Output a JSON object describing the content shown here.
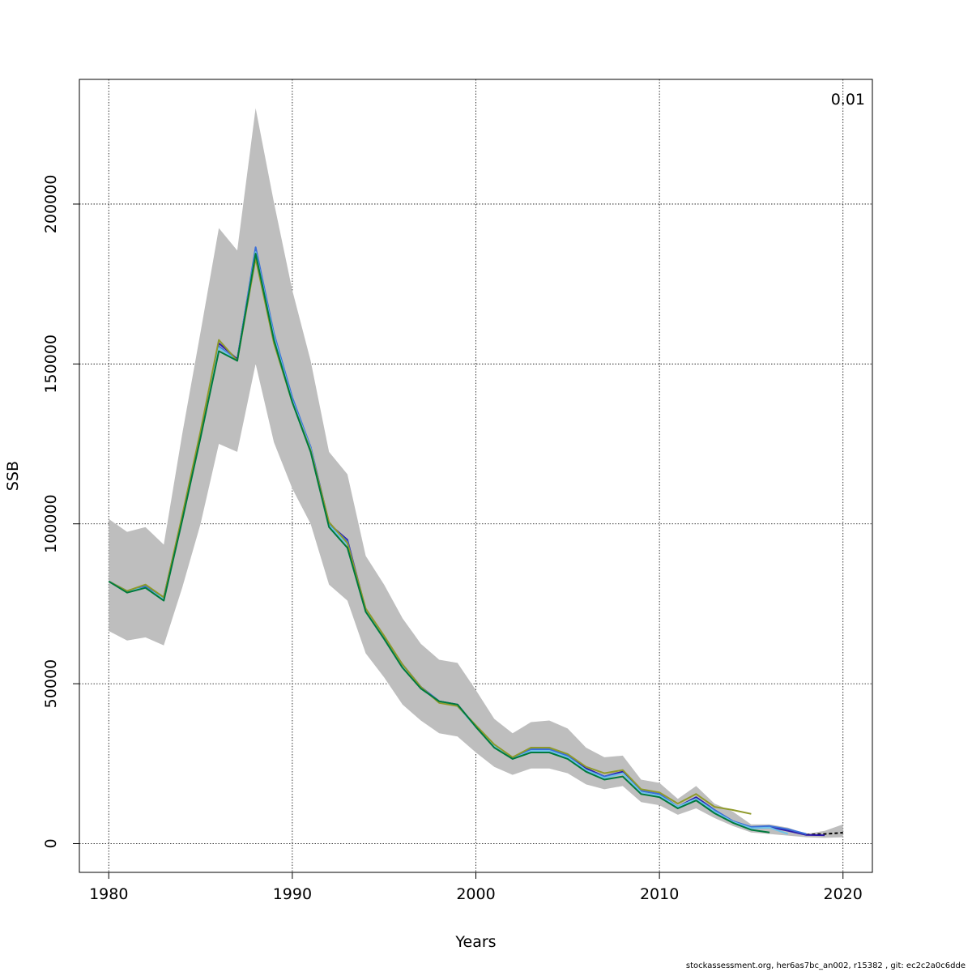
{
  "chart_data": {
    "type": "line",
    "xlabel": "Years",
    "ylabel": "SSB",
    "xlim": [
      1978.4,
      2021.6
    ],
    "ylim": [
      -9000,
      239000
    ],
    "x_ticks": [
      1980,
      1990,
      2000,
      2010,
      2020
    ],
    "y_ticks": [
      0,
      50000,
      100000,
      150000,
      200000
    ],
    "grid": true,
    "corner_label": "0.01",
    "footer": "stockassessment.org, her6as7bc_an002, r15382 , git: ec2c2a0c6dde",
    "confidence_band": {
      "color": "#bebebe",
      "x": [
        1980,
        1981,
        1982,
        1983,
        1984,
        1985,
        1986,
        1987,
        1988,
        1989,
        1990,
        1991,
        1992,
        1993,
        1994,
        1995,
        1996,
        1997,
        1998,
        1999,
        2000,
        2001,
        2002,
        2003,
        2004,
        2005,
        2006,
        2007,
        2008,
        2009,
        2010,
        2011,
        2012,
        2013,
        2014,
        2015,
        2016,
        2017,
        2018,
        2019,
        2020
      ],
      "lower": [
        66500,
        63500,
        64500,
        62000,
        80000,
        100000,
        125000,
        122500,
        150000,
        125500,
        111000,
        100000,
        81000,
        76000,
        59500,
        52000,
        43500,
        38500,
        34500,
        33500,
        28500,
        24000,
        21500,
        23500,
        23500,
        22000,
        18500,
        17000,
        18000,
        13000,
        12000,
        9000,
        11000,
        8000,
        5500,
        3500,
        3000,
        2500,
        2000,
        1800,
        2000
      ],
      "upper": [
        101500,
        97500,
        99000,
        93500,
        128000,
        160000,
        192500,
        185500,
        230000,
        200500,
        173000,
        151000,
        122500,
        115500,
        90000,
        81000,
        70500,
        62500,
        57500,
        56500,
        48000,
        39000,
        34500,
        38000,
        38500,
        36000,
        30000,
        27000,
        27500,
        20000,
        19000,
        14000,
        18000,
        12500,
        10000,
        6000,
        6000,
        5000,
        3000,
        4000,
        6000
      ]
    },
    "series": [
      {
        "color": "#000000",
        "dashed": true,
        "x": [
          2018,
          2019,
          2020
        ],
        "values": [
          2800,
          3000,
          3400
        ]
      },
      {
        "color": "#2c18a8",
        "x": [
          1980,
          1981,
          1982,
          1983,
          1984,
          1985,
          1986,
          1987,
          1988,
          1989,
          1990,
          1991,
          1992,
          1993,
          1994,
          1995,
          1996,
          1997,
          1998,
          1999,
          2000,
          2001,
          2002,
          2003,
          2004,
          2005,
          2006,
          2007,
          2008,
          2009,
          2010,
          2011,
          2012,
          2013,
          2014,
          2015,
          2016,
          2017,
          2018,
          2019
        ],
        "values": [
          82000,
          79000,
          80500,
          77000,
          102000,
          128000,
          156500,
          151500,
          185500,
          159000,
          139000,
          124000,
          100000,
          95000,
          73000,
          64500,
          56000,
          49000,
          44500,
          43500,
          36500,
          30500,
          26500,
          29500,
          29500,
          27500,
          23500,
          21000,
          22500,
          16500,
          15500,
          11500,
          14500,
          10500,
          7000,
          5000,
          5200,
          4000,
          2700,
          2600
        ]
      },
      {
        "color": "#3b6fd8",
        "x": [
          1980,
          1981,
          1982,
          1983,
          1984,
          1985,
          1986,
          1987,
          1988,
          1989,
          1990,
          1991,
          1992,
          1993,
          1994,
          1995,
          1996,
          1997,
          1998,
          1999,
          2000,
          2001,
          2002,
          2003,
          2004,
          2005,
          2006,
          2007,
          2008,
          2009,
          2010,
          2011,
          2012,
          2013,
          2014,
          2015,
          2016,
          2017,
          2018
        ],
        "values": [
          82000,
          79000,
          80500,
          77000,
          102000,
          128000,
          155500,
          151000,
          186500,
          159500,
          139500,
          124000,
          100000,
          94500,
          73000,
          64500,
          56000,
          49000,
          44500,
          43500,
          36500,
          30500,
          26500,
          29500,
          29500,
          27500,
          23000,
          21000,
          22000,
          16500,
          15500,
          11500,
          14000,
          10500,
          7000,
          5200,
          5500,
          4500,
          3000
        ]
      },
      {
        "color": "#6ec2e8",
        "x": [
          1980,
          1981,
          1982,
          1983,
          1984,
          1985,
          1986,
          1987,
          1988,
          1989,
          1990,
          1991,
          1992,
          1993,
          1994,
          1995,
          1996,
          1997,
          1998,
          1999,
          2000,
          2001,
          2002,
          2003,
          2004,
          2005,
          2006,
          2007,
          2008,
          2009,
          2010,
          2011,
          2012,
          2013,
          2014,
          2015,
          2016,
          2017
        ],
        "values": [
          82000,
          79000,
          80000,
          76500,
          101500,
          127500,
          155000,
          151000,
          185000,
          158500,
          138500,
          123500,
          99500,
          93500,
          73000,
          64000,
          55500,
          48500,
          44500,
          43000,
          36500,
          30500,
          26500,
          29000,
          29000,
          27000,
          23000,
          20500,
          22000,
          16000,
          15000,
          11500,
          14000,
          10000,
          6800,
          4800,
          5000,
          3000
        ]
      },
      {
        "color": "#8f9a2a",
        "x": [
          1980,
          1981,
          1982,
          1983,
          1984,
          1985,
          1986,
          1987,
          1988,
          1989,
          1990,
          1991,
          1992,
          1993,
          1994,
          1995,
          1996,
          1997,
          1998,
          1999,
          2000,
          2001,
          2002,
          2003,
          2004,
          2005,
          2006,
          2007,
          2008,
          2009,
          2010,
          2011,
          2012,
          2013,
          2014,
          2015
        ],
        "values": [
          82000,
          79000,
          81000,
          77000,
          102500,
          129000,
          157500,
          151000,
          183000,
          156500,
          138000,
          123000,
          100500,
          94000,
          73500,
          65000,
          56000,
          49000,
          44000,
          43000,
          37000,
          31000,
          27000,
          30000,
          30000,
          28000,
          24000,
          22000,
          23000,
          17000,
          16000,
          12500,
          15500,
          11500,
          10500,
          9300
        ]
      },
      {
        "color": "#007a3d",
        "x": [
          1980,
          1981,
          1982,
          1983,
          1984,
          1985,
          1986,
          1987,
          1988,
          1989,
          1990,
          1991,
          1992,
          1993,
          1994,
          1995,
          1996,
          1997,
          1998,
          1999,
          2000,
          2001,
          2002,
          2003,
          2004,
          2005,
          2006,
          2007,
          2008,
          2009,
          2010,
          2011,
          2012,
          2013,
          2014,
          2015,
          2016
        ],
        "values": [
          82000,
          78500,
          80000,
          76000,
          101000,
          127000,
          154000,
          151000,
          184500,
          157500,
          138000,
          122500,
          99000,
          92500,
          72500,
          64000,
          55000,
          48500,
          44500,
          43500,
          36500,
          30000,
          26500,
          28500,
          28500,
          26500,
          22500,
          20000,
          21000,
          15500,
          14500,
          11000,
          13500,
          9500,
          6500,
          4300,
          3500
        ]
      }
    ]
  }
}
